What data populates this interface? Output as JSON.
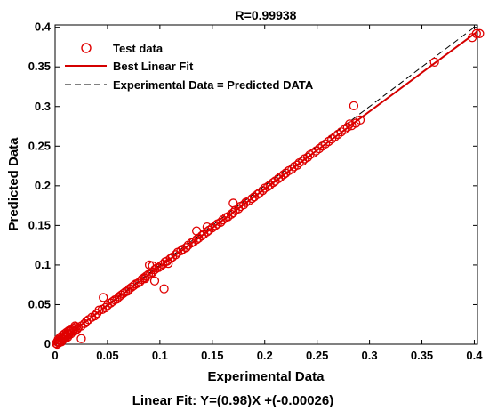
{
  "chart_data": {
    "type": "scatter",
    "title": "R=0.99938",
    "xlabel": "Experimental Data",
    "ylabel": "Predicted Data",
    "caption": "Linear Fit: Y=(0.98)X +(-0.00026)",
    "xlim": [
      0,
      0.4
    ],
    "ylim": [
      0,
      0.4
    ],
    "xticks": [
      "0",
      "0.05",
      "0.1",
      "0.15",
      "0.2",
      "0.25",
      "0.3",
      "0.35",
      "0.4"
    ],
    "yticks": [
      "0",
      "0.05",
      "0.1",
      "0.15",
      "0.2",
      "0.25",
      "0.3",
      "0.35",
      "0.4"
    ],
    "grid": false,
    "legend_position": "top-left",
    "legend": {
      "test": "Test data",
      "fit": "Best Linear Fit",
      "ident": "Experimental Data = Predicted DATA"
    },
    "colors": {
      "points": "#e00000",
      "fit": "#d40000",
      "identity": "#000000"
    },
    "fit": {
      "slope": 0.98,
      "intercept": -0.00026
    },
    "series": [
      {
        "name": "Test data",
        "points": [
          [
            0.001,
            0.001
          ],
          [
            0.002,
            0.003
          ],
          [
            0.003,
            0.002
          ],
          [
            0.004,
            0.005
          ],
          [
            0.005,
            0.004
          ],
          [
            0.006,
            0.007
          ],
          [
            0.007,
            0.006
          ],
          [
            0.008,
            0.009
          ],
          [
            0.009,
            0.008
          ],
          [
            0.01,
            0.011
          ],
          [
            0.011,
            0.01
          ],
          [
            0.012,
            0.014
          ],
          [
            0.013,
            0.012
          ],
          [
            0.014,
            0.016
          ],
          [
            0.015,
            0.013
          ],
          [
            0.016,
            0.018
          ],
          [
            0.017,
            0.016
          ],
          [
            0.018,
            0.02
          ],
          [
            0.019,
            0.017
          ],
          [
            0.02,
            0.022
          ],
          [
            0.021,
            0.019
          ],
          [
            0.002,
            0.0
          ],
          [
            0.004,
            0.002
          ],
          [
            0.006,
            0.003
          ],
          [
            0.008,
            0.006
          ],
          [
            0.01,
            0.008
          ],
          [
            0.012,
            0.009
          ],
          [
            0.003,
            0.006
          ],
          [
            0.005,
            0.009
          ],
          [
            0.007,
            0.011
          ],
          [
            0.009,
            0.013
          ],
          [
            0.011,
            0.015
          ],
          [
            0.013,
            0.017
          ],
          [
            0.015,
            0.019
          ],
          [
            0.025,
            0.007
          ],
          [
            0.019,
            0.023
          ],
          [
            0.022,
            0.021
          ],
          [
            0.025,
            0.023
          ],
          [
            0.028,
            0.026
          ],
          [
            0.03,
            0.029
          ],
          [
            0.032,
            0.031
          ],
          [
            0.035,
            0.034
          ],
          [
            0.038,
            0.036
          ],
          [
            0.04,
            0.039
          ],
          [
            0.042,
            0.043
          ],
          [
            0.045,
            0.044
          ],
          [
            0.046,
            0.059
          ],
          [
            0.048,
            0.046
          ],
          [
            0.05,
            0.049
          ],
          [
            0.053,
            0.052
          ],
          [
            0.055,
            0.054
          ],
          [
            0.057,
            0.056
          ],
          [
            0.059,
            0.057
          ],
          [
            0.061,
            0.06
          ],
          [
            0.063,
            0.062
          ],
          [
            0.065,
            0.064
          ],
          [
            0.067,
            0.066
          ],
          [
            0.069,
            0.067
          ],
          [
            0.071,
            0.07
          ],
          [
            0.073,
            0.072
          ],
          [
            0.075,
            0.074
          ],
          [
            0.077,
            0.076
          ],
          [
            0.079,
            0.077
          ],
          [
            0.081,
            0.079
          ],
          [
            0.083,
            0.082
          ],
          [
            0.085,
            0.084
          ],
          [
            0.087,
            0.086
          ],
          [
            0.089,
            0.088
          ],
          [
            0.091,
            0.089
          ],
          [
            0.093,
            0.091
          ],
          [
            0.095,
            0.094
          ],
          [
            0.097,
            0.096
          ],
          [
            0.099,
            0.097
          ],
          [
            0.101,
            0.099
          ],
          [
            0.103,
            0.101
          ],
          [
            0.104,
            0.07
          ],
          [
            0.105,
            0.104
          ],
          [
            0.107,
            0.105
          ],
          [
            0.108,
            0.102
          ],
          [
            0.095,
            0.08
          ],
          [
            0.11,
            0.108
          ],
          [
            0.112,
            0.11
          ],
          [
            0.115,
            0.113
          ],
          [
            0.117,
            0.116
          ],
          [
            0.12,
            0.118
          ],
          [
            0.122,
            0.12
          ],
          [
            0.125,
            0.122
          ],
          [
            0.127,
            0.125
          ],
          [
            0.13,
            0.128
          ],
          [
            0.132,
            0.129
          ],
          [
            0.135,
            0.132
          ],
          [
            0.137,
            0.134
          ],
          [
            0.14,
            0.137
          ],
          [
            0.142,
            0.139
          ],
          [
            0.145,
            0.142
          ],
          [
            0.147,
            0.144
          ],
          [
            0.15,
            0.147
          ],
          [
            0.153,
            0.15
          ],
          [
            0.155,
            0.152
          ],
          [
            0.158,
            0.154
          ],
          [
            0.16,
            0.157
          ],
          [
            0.163,
            0.16
          ],
          [
            0.165,
            0.161
          ],
          [
            0.168,
            0.164
          ],
          [
            0.17,
            0.166
          ],
          [
            0.172,
            0.169
          ],
          [
            0.175,
            0.171
          ],
          [
            0.177,
            0.174
          ],
          [
            0.18,
            0.176
          ],
          [
            0.182,
            0.179
          ],
          [
            0.185,
            0.181
          ],
          [
            0.188,
            0.184
          ],
          [
            0.19,
            0.186
          ],
          [
            0.193,
            0.189
          ],
          [
            0.195,
            0.191
          ],
          [
            0.198,
            0.194
          ],
          [
            0.2,
            0.197
          ],
          [
            0.203,
            0.199
          ],
          [
            0.205,
            0.201
          ],
          [
            0.208,
            0.204
          ],
          [
            0.21,
            0.206
          ],
          [
            0.213,
            0.209
          ],
          [
            0.215,
            0.211
          ],
          [
            0.218,
            0.214
          ],
          [
            0.22,
            0.216
          ],
          [
            0.223,
            0.219
          ],
          [
            0.226,
            0.221
          ],
          [
            0.228,
            0.224
          ],
          [
            0.231,
            0.226
          ],
          [
            0.233,
            0.229
          ],
          [
            0.236,
            0.231
          ],
          [
            0.238,
            0.234
          ],
          [
            0.241,
            0.236
          ],
          [
            0.243,
            0.239
          ],
          [
            0.246,
            0.241
          ],
          [
            0.249,
            0.244
          ],
          [
            0.252,
            0.247
          ],
          [
            0.255,
            0.25
          ],
          [
            0.258,
            0.253
          ],
          [
            0.261,
            0.256
          ],
          [
            0.264,
            0.259
          ],
          [
            0.267,
            0.262
          ],
          [
            0.27,
            0.265
          ],
          [
            0.273,
            0.268
          ],
          [
            0.276,
            0.271
          ],
          [
            0.279,
            0.274
          ],
          [
            0.281,
            0.278
          ],
          [
            0.283,
            0.276
          ],
          [
            0.285,
            0.301
          ],
          [
            0.287,
            0.279
          ],
          [
            0.291,
            0.283
          ],
          [
            0.362,
            0.356
          ],
          [
            0.398,
            0.387
          ],
          [
            0.402,
            0.392
          ],
          [
            0.405,
            0.392
          ],
          [
            0.09,
            0.1
          ],
          [
            0.093,
            0.099
          ],
          [
            0.135,
            0.143
          ],
          [
            0.145,
            0.148
          ],
          [
            0.17,
            0.178
          ],
          [
            0.086,
            0.083
          ]
        ]
      }
    ]
  }
}
